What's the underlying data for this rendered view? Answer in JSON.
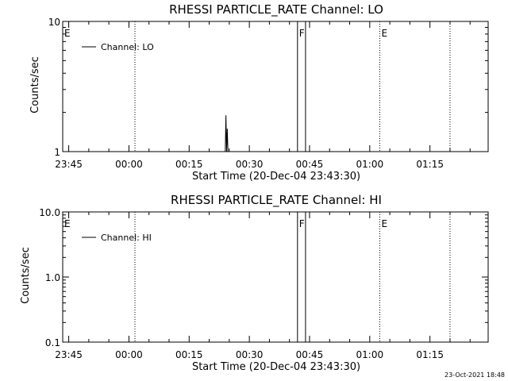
{
  "footer_date": "23-Oct-2021 18:48",
  "chart_data": [
    {
      "type": "line",
      "title": "RHESSI PARTICLE_RATE Channel: LO",
      "xlabel": "Start Time (20-Dec-04 23:43:30)",
      "ylabel": "Counts/sec",
      "y_scale": "log",
      "ylim": [
        1,
        10
      ],
      "y_ticks": [
        "1",
        "10"
      ],
      "xlim": [
        "23:43:30",
        "01:29:30"
      ],
      "x_ticks": [
        "23:45",
        "00:00",
        "00:15",
        "00:30",
        "00:45",
        "01:00",
        "01:15"
      ],
      "legend": {
        "position": "top-left",
        "entries": [
          "Channel: LO"
        ]
      },
      "flags": [
        {
          "label": "E",
          "time": "23:43:30",
          "style": "none"
        },
        {
          "label": "",
          "time": "00:01:30",
          "style": "dotted"
        },
        {
          "label": "F",
          "time": "00:42:00",
          "style": "solid"
        },
        {
          "label": "",
          "time": "00:44:00",
          "style": "solid"
        },
        {
          "label": "E",
          "time": "01:02:30",
          "style": "dotted"
        },
        {
          "label": "",
          "time": "01:20:00",
          "style": "dotted"
        }
      ],
      "series": [
        {
          "name": "Channel: LO",
          "points": [
            {
              "x": "00:24:00",
              "y": 1.0
            },
            {
              "x": "00:24:10",
              "y": 1.9
            },
            {
              "x": "00:24:20",
              "y": 1.0
            },
            {
              "x": "00:24:30",
              "y": 1.5
            },
            {
              "x": "00:24:40",
              "y": 1.0
            }
          ]
        }
      ]
    },
    {
      "type": "line",
      "title": "RHESSI PARTICLE_RATE Channel: HI",
      "xlabel": "Start Time (20-Dec-04 23:43:30)",
      "ylabel": "Counts/sec",
      "y_scale": "log",
      "ylim": [
        0.1,
        10
      ],
      "y_ticks": [
        "0.1",
        "1.0",
        "10.0"
      ],
      "xlim": [
        "23:43:30",
        "01:29:30"
      ],
      "x_ticks": [
        "23:45",
        "00:00",
        "00:15",
        "00:30",
        "00:45",
        "01:00",
        "01:15"
      ],
      "legend": {
        "position": "top-left",
        "entries": [
          "Channel: HI"
        ]
      },
      "flags": [
        {
          "label": "E",
          "time": "23:43:30",
          "style": "none"
        },
        {
          "label": "",
          "time": "00:01:30",
          "style": "dotted"
        },
        {
          "label": "F",
          "time": "00:42:00",
          "style": "solid"
        },
        {
          "label": "",
          "time": "00:44:00",
          "style": "solid"
        },
        {
          "label": "E",
          "time": "01:02:30",
          "style": "dotted"
        },
        {
          "label": "",
          "time": "01:20:00",
          "style": "dotted"
        }
      ],
      "series": [
        {
          "name": "Channel: HI",
          "points": []
        }
      ]
    }
  ]
}
